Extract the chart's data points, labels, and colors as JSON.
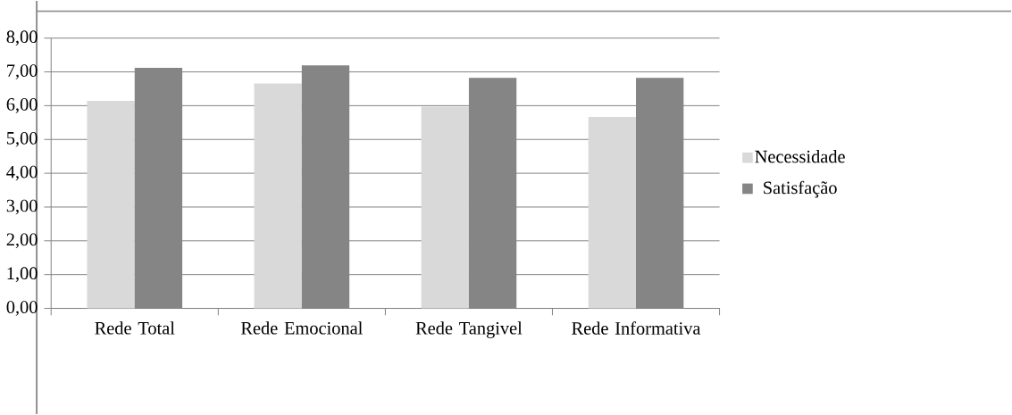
{
  "chart_data": {
    "type": "bar",
    "categories": [
      "Rede Total",
      "Rede Emocional",
      "Rede Tangivel",
      "Rede Informativa"
    ],
    "series": [
      {
        "name": "Necessidade",
        "color": "#d9d9d9",
        "values": [
          6.14,
          6.66,
          5.97,
          5.67
        ]
      },
      {
        "name": "Satisfação",
        "color": "#858585",
        "values": [
          7.12,
          7.19,
          6.82,
          6.82
        ]
      }
    ],
    "ylim": [
      0,
      8
    ],
    "yticks": [
      {
        "value": 0,
        "label": "0,00"
      },
      {
        "value": 1,
        "label": "1,00"
      },
      {
        "value": 2,
        "label": "2,00"
      },
      {
        "value": 3,
        "label": "3,00"
      },
      {
        "value": 4,
        "label": "4,00"
      },
      {
        "value": 5,
        "label": "5,00"
      },
      {
        "value": 6,
        "label": "6,00"
      },
      {
        "value": 7,
        "label": "7,00"
      },
      {
        "value": 8,
        "label": "8,00"
      }
    ],
    "grid": "y",
    "legend": "right"
  }
}
